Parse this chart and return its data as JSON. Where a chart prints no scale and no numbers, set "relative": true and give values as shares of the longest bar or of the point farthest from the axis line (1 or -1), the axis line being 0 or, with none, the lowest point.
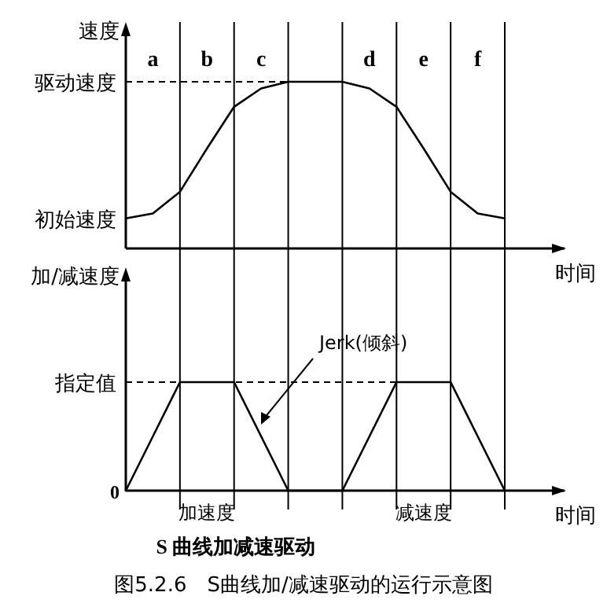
{
  "chart_data": [
    {
      "type": "line",
      "relative": true,
      "ylabel": "速度",
      "xlabel": "时间",
      "categories": [
        null,
        "a",
        null,
        "b",
        null,
        "c",
        null,
        null,
        null,
        "d",
        null,
        "e",
        null,
        "f",
        null
      ],
      "series": [
        {
          "color": "#000000",
          "values": [
            0.18,
            0.21,
            0.34,
            0.6,
            0.85,
            0.96,
            1,
            1,
            1,
            0.96,
            0.85,
            0.6,
            0.34,
            0.21,
            0.18
          ]
        }
      ],
      "grid": "x",
      "ref_lines": [
        {
          "axis": "y",
          "value": 1,
          "label": "驱动速度",
          "line_style": "dashed",
          "color": "#000000"
        }
      ],
      "annotations": [
        "初始速度"
      ]
    },
    {
      "type": "line",
      "relative": true,
      "ylabel": "加/减速度",
      "xlabel": "时间",
      "categories": [
        null,
        null,
        null,
        "加速度",
        null,
        null,
        null,
        null,
        null,
        null,
        null,
        "减速度",
        null,
        null,
        null
      ],
      "series": [
        {
          "color": "#000000",
          "values": [
            0,
            0.5,
            1,
            1,
            1,
            0.5,
            0,
            0,
            0,
            0.5,
            1,
            1,
            1,
            0.5,
            0
          ]
        }
      ],
      "grid": "x",
      "ref_lines": [
        {
          "axis": "y",
          "value": 1,
          "label": "指定值",
          "line_style": "dashed",
          "color": "#000000"
        }
      ],
      "annotations": [
        "0",
        "Jerk(倾斜)",
        "S 曲线加减速驱动",
        "图5.2.6　S曲线加/减速驱动的运行示意图"
      ]
    }
  ]
}
